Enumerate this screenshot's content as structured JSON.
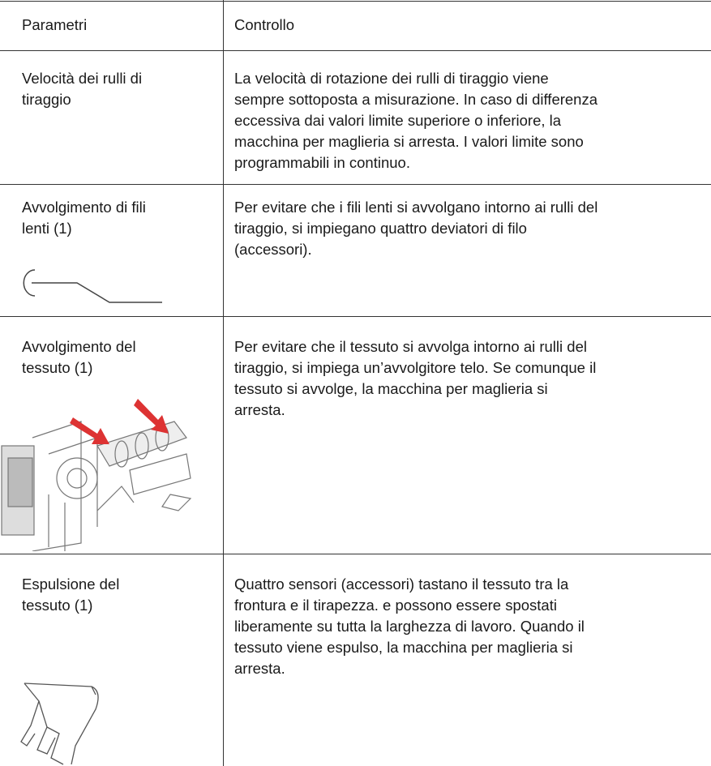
{
  "table": {
    "header": [
      "Parametri",
      "Controllo"
    ],
    "rows": [
      {
        "param": [
          "Velocità dei rulli di",
          "tiraggio"
        ],
        "control": [
          "La velocità di rotazione dei rulli di tiraggio viene",
          "sempre sottoposta a misurazione. In caso di differenza",
          "eccessiva dai valori limite superiore o inferiore, la",
          "macchina per maglieria si arresta. I valori limite sono",
          "programmabili in continuo."
        ]
      },
      {
        "param": [
          "Avvolgimento di fili",
          "lenti (1)"
        ],
        "control": [
          "Per evitare che i fili lenti si avvolgano intorno ai rulli del",
          "tiraggio, si impiegano quattro deviatori di filo",
          "(accessori)."
        ]
      },
      {
        "param": [
          "Avvolgimento del",
          "tessuto (1)"
        ],
        "control": [
          "Per evitare che il tessuto si avvolga intorno ai rulli del",
          "tiraggio, si impiega un’avvolgitore telo. Se comunque il",
          "tessuto si avvolge, la macchina per maglieria si",
          "arresta."
        ]
      },
      {
        "param": [
          "Espulsione del",
          "tessuto (1)"
        ],
        "control": [
          "Quattro sensori (accessori) tastano il tessuto tra la",
          "frontura e il tirapezza. e possono essere spostati",
          "liberamente su tutta la larghezza di lavoro. Quando il",
          "tessuto viene espulso, la macchina per maglieria si",
          "arresta."
        ]
      }
    ]
  }
}
